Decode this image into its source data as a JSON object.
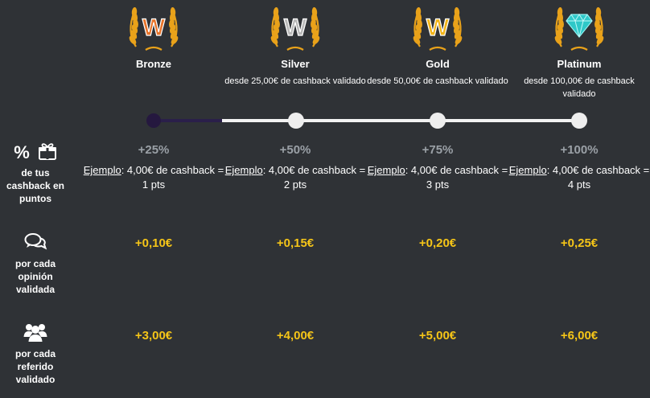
{
  "tiers": [
    {
      "name": "Bronze",
      "requirement": "",
      "badge_letter": "W",
      "badge_color": "#e8742a"
    },
    {
      "name": "Silver",
      "requirement": "desde 25,00€ de cashback validado",
      "badge_letter": "W",
      "badge_color": "#b9b9b9"
    },
    {
      "name": "Gold",
      "requirement": "desde 50,00€ de cashback validado",
      "badge_letter": "W",
      "badge_color": "#f2b418"
    },
    {
      "name": "Platinum",
      "requirement": "desde 100,00€ de cashback validado",
      "badge_letter": "",
      "badge_color": "#2ec8c8"
    }
  ],
  "progress": {
    "current_tier": "Bronze",
    "fill_fraction": 0.16
  },
  "rows": {
    "cashback": {
      "label": "de tus cashback en puntos",
      "icons": [
        "percent-icon",
        "gift-icon"
      ],
      "percent_symbol": "%",
      "example_word": "Ejemplo",
      "cells": [
        {
          "pct": "+25%",
          "example_rest": ": 4,00€ de cashback = 1 pts"
        },
        {
          "pct": "+50%",
          "example_rest": ": 4,00€ de cashback = 2 pts"
        },
        {
          "pct": "+75%",
          "example_rest": ": 4,00€ de cashback = 3 pts"
        },
        {
          "pct": "+100%",
          "example_rest": ": 4,00€ de cashback = 4 pts"
        }
      ]
    },
    "review": {
      "label": "por cada opinión validada",
      "icons": [
        "chat-bubbles-icon"
      ],
      "values": [
        "+0,10€",
        "+0,15€",
        "+0,20€",
        "+0,25€"
      ]
    },
    "referral": {
      "label": "por cada referido validado",
      "icons": [
        "users-group-icon"
      ],
      "values": [
        "+3,00€",
        "+4,00€",
        "+5,00€",
        "+6,00€"
      ]
    }
  },
  "colors": {
    "background": "#2f3236",
    "amount_yellow": "#f5c518",
    "percent_gray": "#9aa0a6",
    "track": "#f2f2f2",
    "track_fill": "#2a1f4a"
  }
}
